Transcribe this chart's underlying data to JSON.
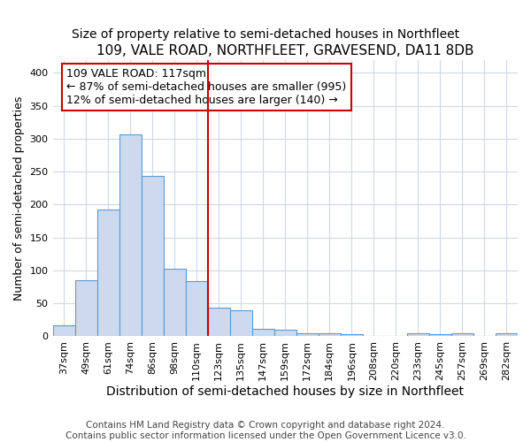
{
  "title": "109, VALE ROAD, NORTHFLEET, GRAVESEND, DA11 8DB",
  "subtitle": "Size of property relative to semi-detached houses in Northfleet",
  "xlabel": "Distribution of semi-detached houses by size in Northfleet",
  "ylabel": "Number of semi-detached properties",
  "footer1": "Contains HM Land Registry data © Crown copyright and database right 2024.",
  "footer2": "Contains public sector information licensed under the Open Government Licence v3.0.",
  "bar_labels": [
    "37sqm",
    "49sqm",
    "61sqm",
    "74sqm",
    "86sqm",
    "98sqm",
    "110sqm",
    "123sqm",
    "135sqm",
    "147sqm",
    "159sqm",
    "172sqm",
    "184sqm",
    "196sqm",
    "208sqm",
    "220sqm",
    "233sqm",
    "245sqm",
    "257sqm",
    "269sqm",
    "282sqm"
  ],
  "bar_values": [
    17,
    85,
    193,
    307,
    244,
    103,
    84,
    44,
    39,
    11,
    10,
    4,
    5,
    3,
    0,
    0,
    5,
    3,
    4,
    0,
    4
  ],
  "bar_color": "#ccd9ee",
  "bar_edge_color": "#5b9bd5",
  "vline_x": 7.0,
  "vline_color": "#cc0000",
  "annotation_text": "109 VALE ROAD: 117sqm\n← 87% of semi-detached houses are smaller (995)\n12% of semi-detached houses are larger (140) →",
  "annotation_box_color": "white",
  "annotation_box_edge_color": "#cc0000",
  "ylim": [
    0,
    420
  ],
  "yticks": [
    0,
    50,
    100,
    150,
    200,
    250,
    300,
    350,
    400
  ],
  "background_color": "#ffffff",
  "plot_background_color": "#ffffff",
  "grid_color": "#d0d8e8",
  "title_fontsize": 11,
  "subtitle_fontsize": 10,
  "xlabel_fontsize": 10,
  "ylabel_fontsize": 9,
  "tick_fontsize": 8,
  "annotation_fontsize": 9,
  "footer_fontsize": 7.5
}
